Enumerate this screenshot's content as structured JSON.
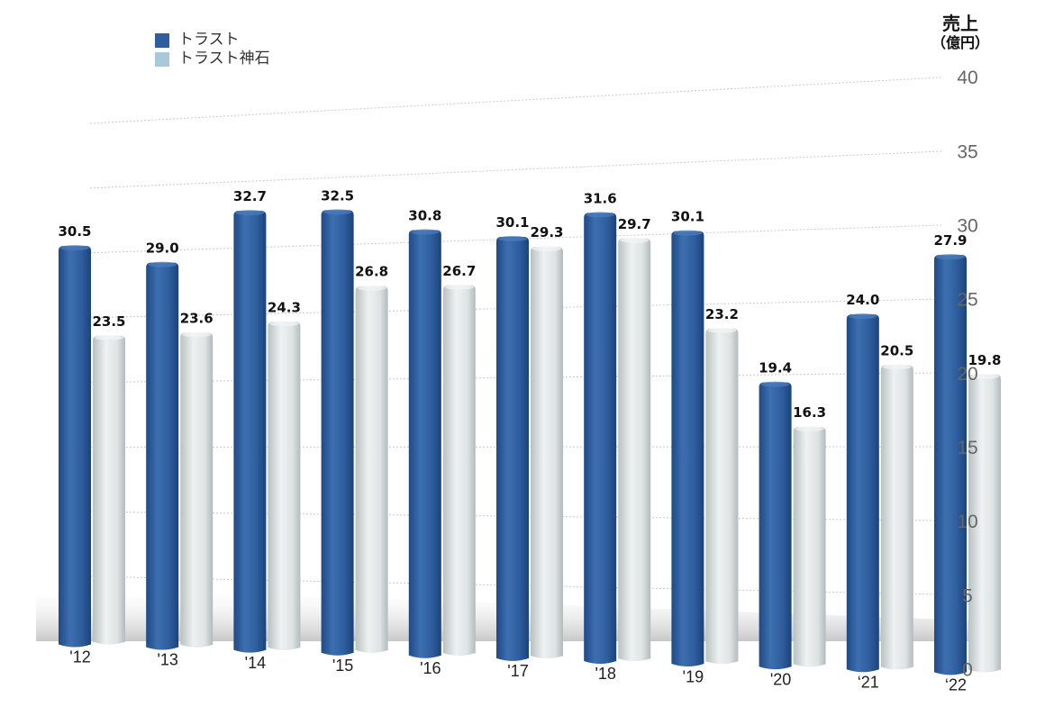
{
  "legend": [
    {
      "label": "トラスト",
      "color": "#2f5e9e"
    },
    {
      "label": "トラスト神石",
      "color": "#a9c8da"
    }
  ],
  "y_axis": {
    "title": "売上",
    "unit": "（億円）"
  },
  "chart_data": {
    "type": "bar",
    "title": "",
    "xlabel": "",
    "ylabel": "売上（億円）",
    "ylim": [
      0,
      40
    ],
    "yticks": [
      0,
      5,
      10,
      15,
      20,
      25,
      30,
      35,
      40
    ],
    "grid": true,
    "legend_position": "top-left",
    "categories": [
      "'12",
      "'13",
      "'14",
      "'15",
      "'16",
      "'17",
      "'18",
      "'19",
      "'20",
      "‘21",
      "‘22"
    ],
    "series": [
      {
        "name": "トラスト",
        "color": "#2f5e9e",
        "values": [
          30.5,
          29.0,
          32.7,
          32.5,
          30.8,
          30.1,
          31.6,
          30.1,
          19.4,
          24.0,
          27.9
        ],
        "labels": [
          "30.5",
          "29.0",
          "32.7",
          "32.5",
          "30.8",
          "30.1",
          "31.6",
          "30.1",
          "19.4",
          "24.0",
          "27.9"
        ]
      },
      {
        "name": "トラスト神石",
        "color": "#dfe3e3",
        "values": [
          23.5,
          23.6,
          24.3,
          26.8,
          26.7,
          29.3,
          29.7,
          23.2,
          16.3,
          20.5,
          19.8
        ],
        "labels": [
          "23.5",
          "23.6",
          "24.3",
          "26.8",
          "26.7",
          "29.3",
          "29.7",
          "23.2",
          "16.3",
          "20.5",
          "19.8"
        ]
      }
    ]
  }
}
